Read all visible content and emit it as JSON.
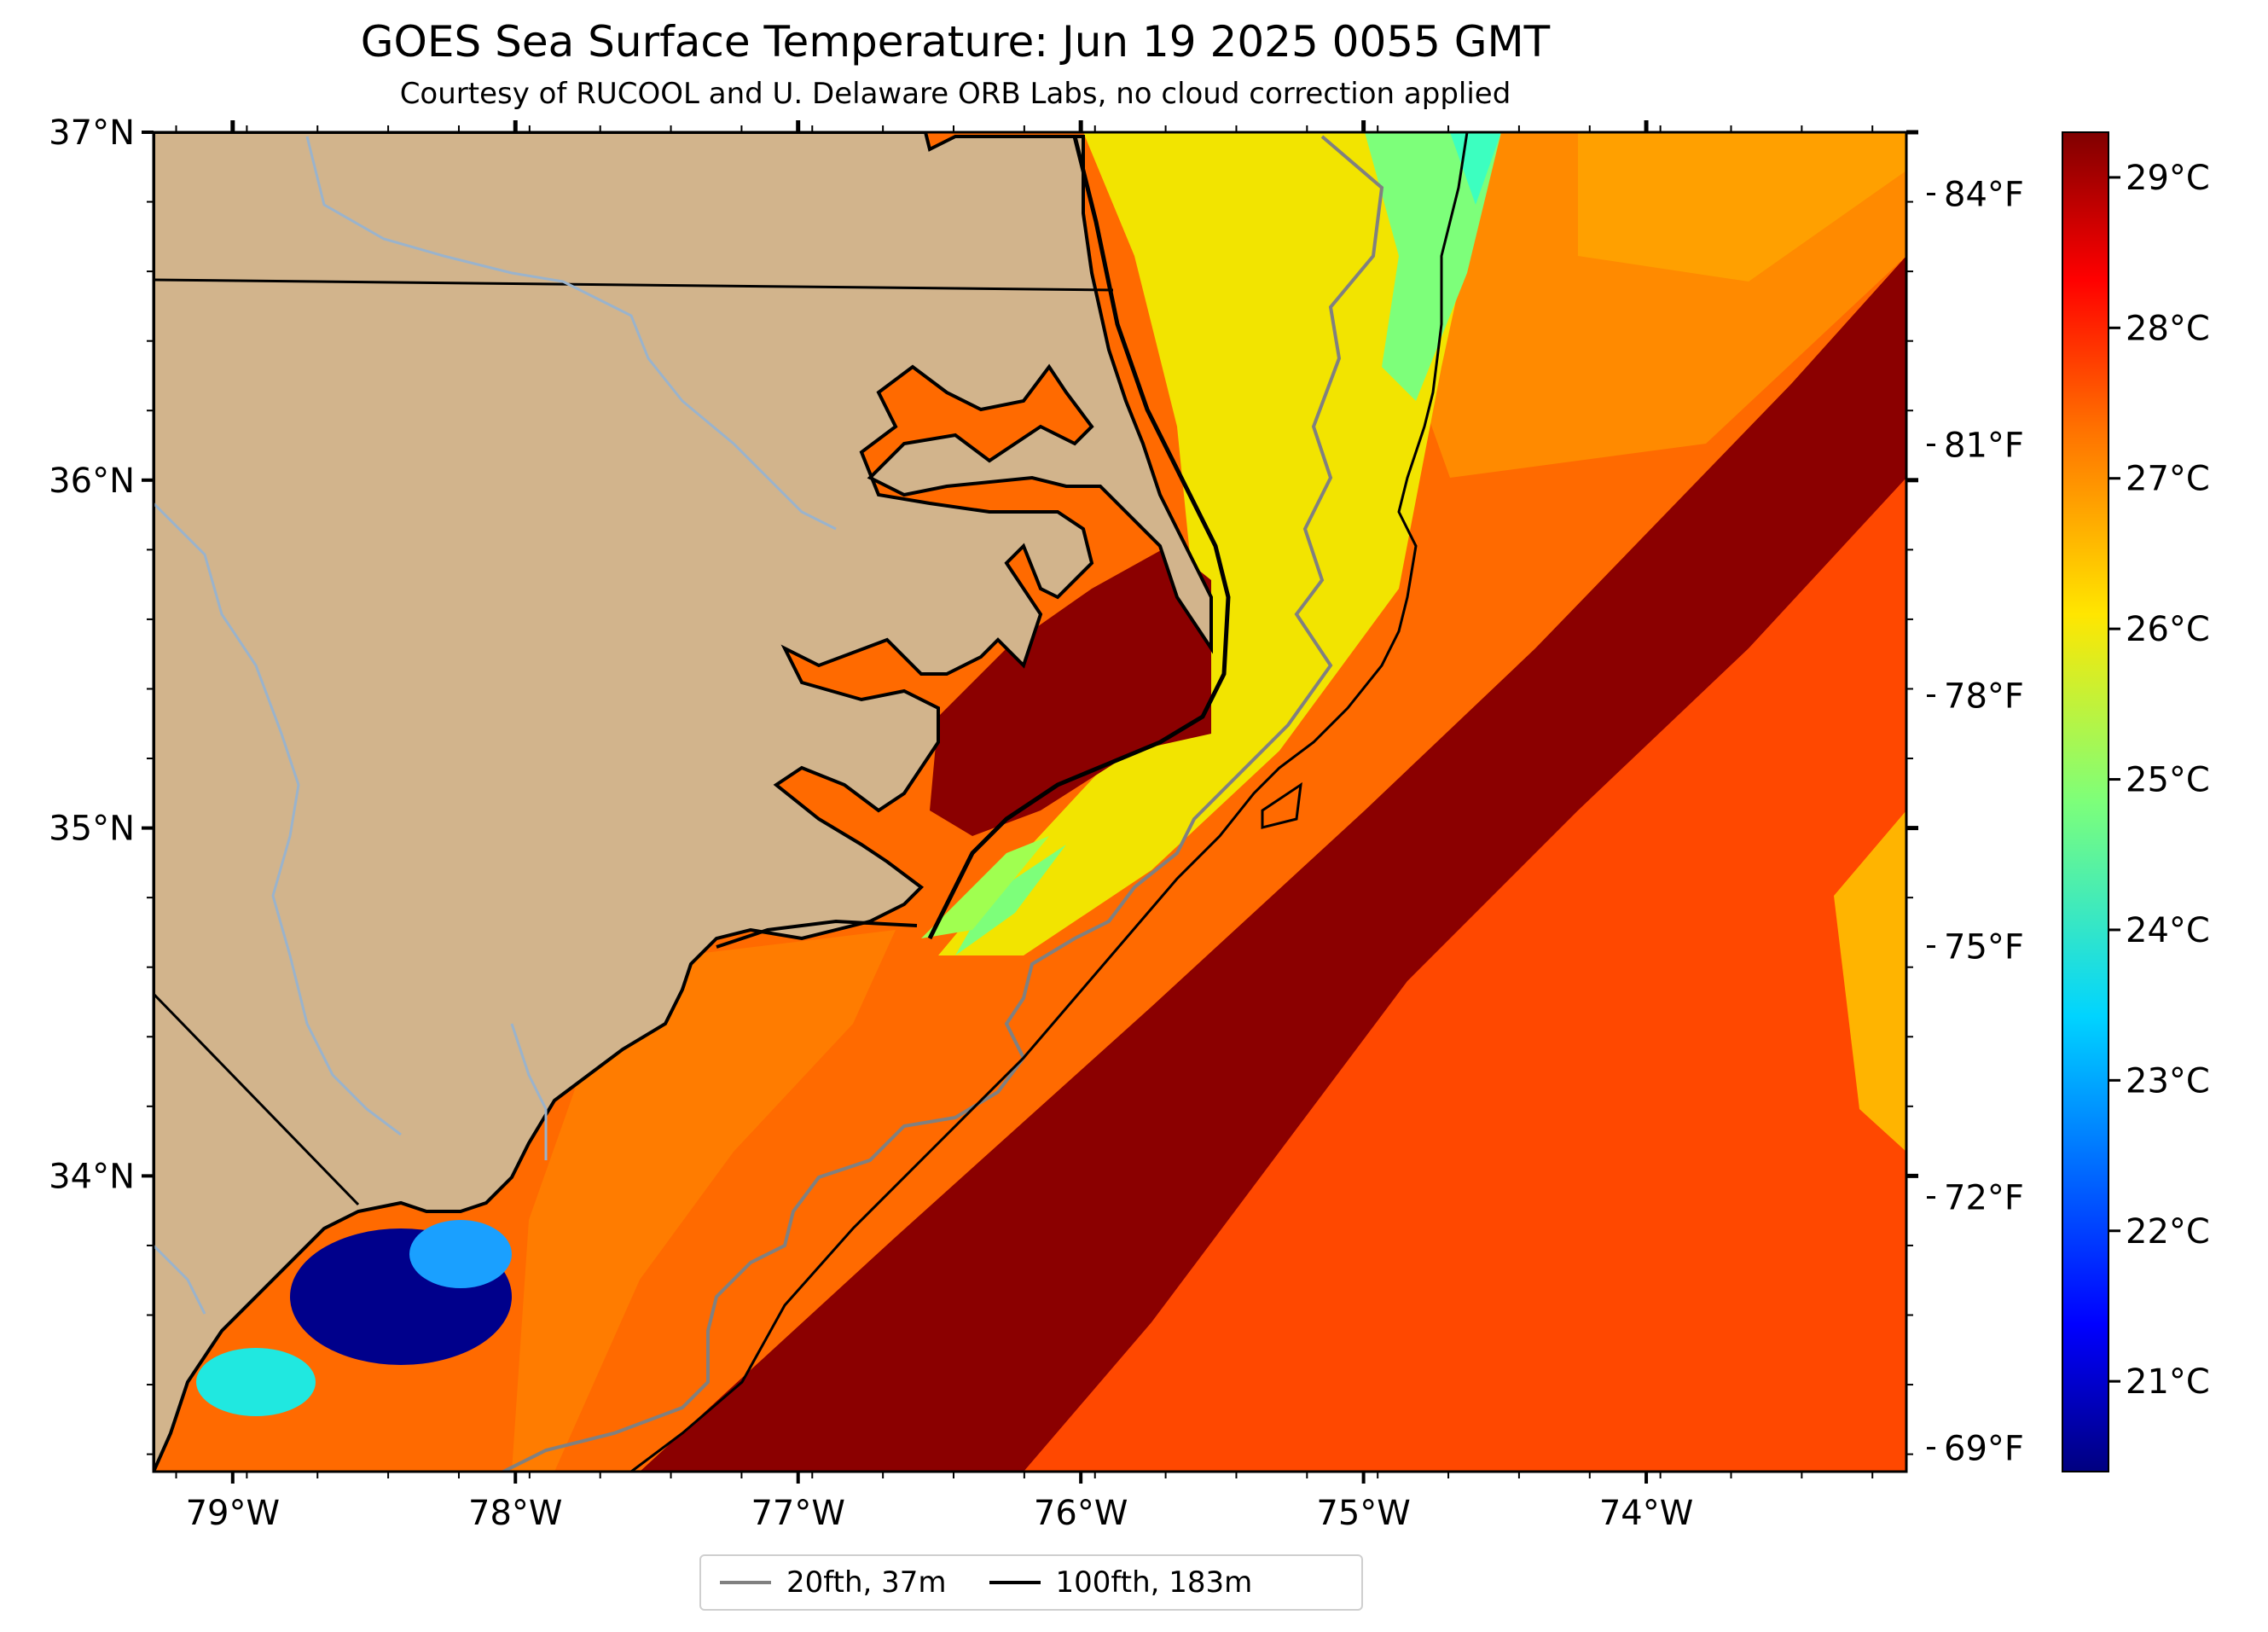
{
  "title": "GOES Sea Surface Temperature: Jun 19 2025 0055 GMT",
  "subtitle": "Courtesy of RUCOOL and U. Delaware ORB Labs, no cloud correction applied",
  "map": {
    "lat_range": [
      33.15,
      37.0
    ],
    "lon_range": [
      -79.28,
      -73.08
    ],
    "lat_ticks": [
      "37°N",
      "36°N",
      "35°N",
      "34°N"
    ],
    "lon_ticks": [
      "79°W",
      "78°W",
      "77°W",
      "76°W",
      "75°W",
      "74°W"
    ],
    "right_ticks_f": [
      "84°F",
      "81°F",
      "78°F",
      "75°F",
      "72°F",
      "69°F"
    ],
    "land_color": "#d2b48c"
  },
  "colorbar": {
    "colormap": "jet",
    "range_c": [
      20.4,
      29.3
    ],
    "ticks_c": [
      "29°C",
      "28°C",
      "27°C",
      "26°C",
      "25°C",
      "24°C",
      "23°C",
      "22°C",
      "21°C"
    ]
  },
  "legend": {
    "items": [
      {
        "label": "20fth, 37m",
        "color": "#808080"
      },
      {
        "label": "100fth, 183m",
        "color": "#000000"
      }
    ]
  }
}
